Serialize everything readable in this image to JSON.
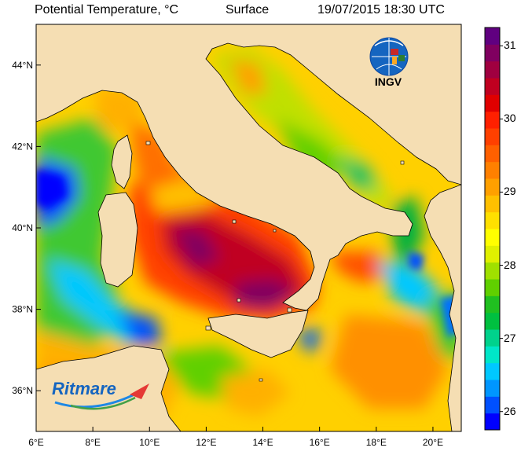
{
  "header": {
    "title": "Potential Temperature, °C",
    "level": "Surface",
    "datetime": "19/07/2015 18:30 UTC"
  },
  "map": {
    "lon_range": [
      6,
      21
    ],
    "lat_range": [
      35,
      45
    ],
    "lon_ticks": [
      "6°E",
      "8°E",
      "10°E",
      "12°E",
      "14°E",
      "16°E",
      "18°E",
      "20°E"
    ],
    "lat_ticks": [
      "36°N",
      "38°N",
      "40°N",
      "42°N",
      "44°N"
    ],
    "land_color": "#f5deb3",
    "coast_color": "#000000"
  },
  "colorbar": {
    "min": 25.75,
    "max": 31.25,
    "labels": [
      "31",
      "30",
      "29",
      "28",
      "27",
      "26"
    ],
    "colors_low_to_high": [
      "#0000ff",
      "#0050ff",
      "#0096ff",
      "#00c8ff",
      "#00e6c8",
      "#00d28c",
      "#00c040",
      "#20c020",
      "#60d000",
      "#a0e000",
      "#e0f000",
      "#ffff00",
      "#ffe000",
      "#ffc000",
      "#ffa000",
      "#ff8000",
      "#ff6000",
      "#ff4000",
      "#ff2000",
      "#e00000",
      "#c00020",
      "#a00040",
      "#800060",
      "#600080"
    ]
  },
  "logos": {
    "ingv_text": "INGV",
    "ritmare_text": "Ritmare"
  }
}
